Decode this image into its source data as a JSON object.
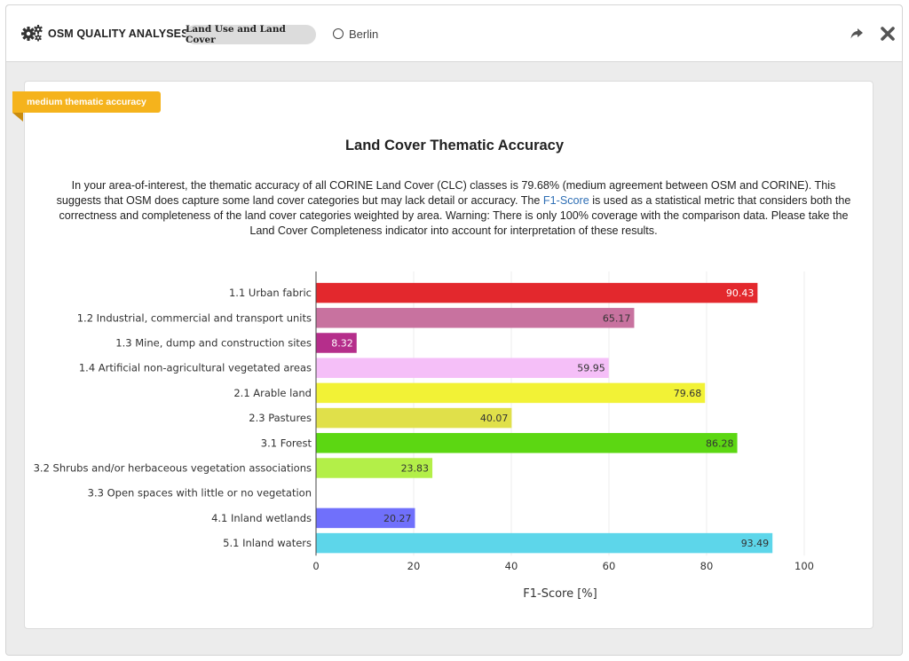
{
  "header": {
    "app_title": "OSM QUALITY ANALYSES",
    "topic_pill": "Land Use and Land Cover",
    "location": "Berlin",
    "icons": [
      "gear-icon",
      "radio-icon",
      "share-icon",
      "close-icon"
    ]
  },
  "card": {
    "badge": "medium thematic accuracy",
    "badge_color": "#f5b31c",
    "title": "Land Cover Thematic Accuracy",
    "description_before_link": "In your area-of-interest, the thematic accuracy of all CORINE Land Cover (CLC) classes is 79.68% (medium agreement between OSM and CORINE). This suggests that OSM does capture some land cover categories but may lack detail or accuracy. The ",
    "description_link": "F1-Score",
    "description_after_link": " is used as a statistical metric that considers both the correctness and completeness of the land cover categories weighted by area. Warning: There is only 100% coverage with the comparison data. Please take the Land Cover Completeness indicator into account for interpretation of these results."
  },
  "chart_data": {
    "type": "bar",
    "orientation": "horizontal",
    "categories": [
      "1.1 Urban fabric",
      "1.2 Industrial, commercial and transport units",
      "1.3 Mine, dump and construction sites",
      "1.4 Artificial non-agricultural vegetated areas",
      "2.1 Arable land",
      "2.3 Pastures",
      "3.1 Forest",
      "3.2 Shrubs and/or herbaceous vegetation associations",
      "3.3 Open spaces with little or no vegetation",
      "4.1 Inland wetlands",
      "5.1 Inland waters"
    ],
    "values": [
      90.43,
      65.17,
      8.32,
      59.95,
      79.68,
      40.07,
      86.28,
      23.83,
      null,
      20.27,
      93.49
    ],
    "value_labels": [
      "90.43",
      "65.17",
      "8.32",
      "59.95",
      "79.68",
      "40.07",
      "86.28",
      "23.83",
      "",
      "20.27",
      "93.49"
    ],
    "colors": [
      "#e3282d",
      "#c8729f",
      "#b52e8b",
      "#f5bff8",
      "#f2f236",
      "#e0e04a",
      "#5cd712",
      "#b3ef48",
      "#cccccc",
      "#7070fb",
      "#5dd6ea"
    ],
    "label_colors": [
      "#ffffff",
      "#333333",
      "#ffffff",
      "#333333",
      "#333333",
      "#333333",
      "#333333",
      "#333333",
      "#333333",
      "#333333",
      "#333333"
    ],
    "xlabel": "F1-Score [%]",
    "ylabel": "",
    "xlim": [
      0,
      100
    ],
    "xticks": [
      "0",
      "20",
      "40",
      "60",
      "80",
      "100"
    ],
    "grid": true
  }
}
